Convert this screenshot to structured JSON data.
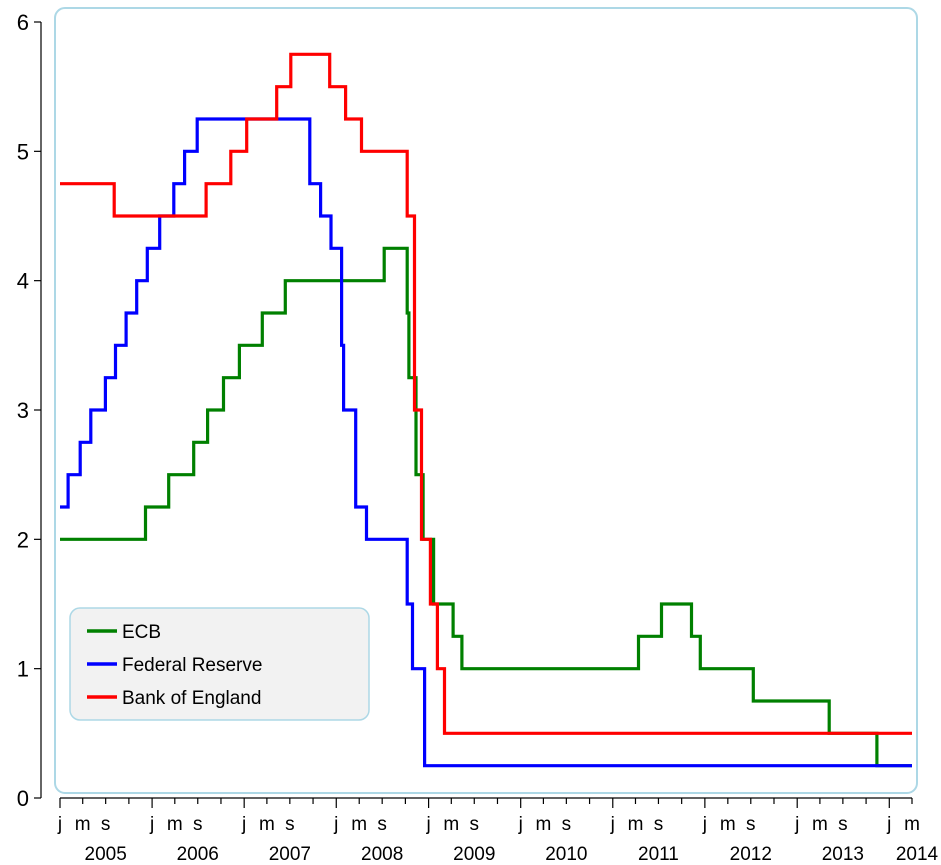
{
  "chart_data": {
    "type": "line",
    "step": true,
    "title": "",
    "xlabel": "",
    "ylabel": "",
    "ylim": [
      0,
      6
    ],
    "xlim": [
      "2005-01-01",
      "2014-04-01"
    ],
    "y_ticks": [
      "0",
      "1",
      "2",
      "3",
      "4",
      "5",
      "6"
    ],
    "x_year_labels": [
      "2005",
      "2006",
      "2007",
      "2008",
      "2009",
      "2010",
      "2011",
      "2012",
      "2013",
      "2014"
    ],
    "x_month_labels": [
      "j",
      "m",
      "s"
    ],
    "grid": false,
    "legend_position": "bottom-left",
    "colors": {
      "frame": "#add8e6",
      "legend_bg": "#f2f2f2"
    },
    "series": [
      {
        "name": "ECB",
        "color": "#008000",
        "points": [
          [
            "2005-01-01",
            2.0
          ],
          [
            "2005-12-06",
            2.25
          ],
          [
            "2006-03-08",
            2.5
          ],
          [
            "2006-06-15",
            2.75
          ],
          [
            "2006-08-09",
            3.0
          ],
          [
            "2006-10-11",
            3.25
          ],
          [
            "2006-12-13",
            3.5
          ],
          [
            "2007-03-14",
            3.75
          ],
          [
            "2007-06-13",
            4.0
          ],
          [
            "2008-07-09",
            4.25
          ],
          [
            "2008-10-08",
            3.75
          ],
          [
            "2008-10-15",
            3.25
          ],
          [
            "2008-11-12",
            2.5
          ],
          [
            "2008-12-10",
            2.0
          ],
          [
            "2009-01-21",
            1.5
          ],
          [
            "2009-04-08",
            1.25
          ],
          [
            "2009-05-13",
            1.0
          ],
          [
            "2011-04-13",
            1.25
          ],
          [
            "2011-07-13",
            1.5
          ],
          [
            "2011-11-09",
            1.25
          ],
          [
            "2011-12-14",
            1.0
          ],
          [
            "2012-07-11",
            0.75
          ],
          [
            "2013-05-08",
            0.5
          ],
          [
            "2013-11-13",
            0.25
          ],
          [
            "2014-04-01",
            0.25
          ]
        ]
      },
      {
        "name": "Federal Reserve",
        "color": "#0000ff",
        "points": [
          [
            "2005-01-01",
            2.25
          ],
          [
            "2005-02-02",
            2.5
          ],
          [
            "2005-03-22",
            2.75
          ],
          [
            "2005-05-03",
            3.0
          ],
          [
            "2005-06-30",
            3.25
          ],
          [
            "2005-08-09",
            3.5
          ],
          [
            "2005-09-20",
            3.75
          ],
          [
            "2005-11-01",
            4.0
          ],
          [
            "2005-12-13",
            4.25
          ],
          [
            "2006-01-31",
            4.5
          ],
          [
            "2006-03-28",
            4.75
          ],
          [
            "2006-05-10",
            5.0
          ],
          [
            "2006-06-29",
            5.25
          ],
          [
            "2007-09-18",
            4.75
          ],
          [
            "2007-10-31",
            4.5
          ],
          [
            "2007-12-11",
            4.25
          ],
          [
            "2008-01-22",
            3.5
          ],
          [
            "2008-01-30",
            3.0
          ],
          [
            "2008-03-18",
            2.25
          ],
          [
            "2008-04-30",
            2.0
          ],
          [
            "2008-10-08",
            1.5
          ],
          [
            "2008-10-29",
            1.0
          ],
          [
            "2008-12-16",
            0.25
          ],
          [
            "2014-04-01",
            0.25
          ]
        ]
      },
      {
        "name": "Bank of England",
        "color": "#ff0000",
        "points": [
          [
            "2005-01-01",
            4.75
          ],
          [
            "2005-08-04",
            4.5
          ],
          [
            "2006-08-03",
            4.75
          ],
          [
            "2006-11-09",
            5.0
          ],
          [
            "2007-01-11",
            5.25
          ],
          [
            "2007-05-10",
            5.5
          ],
          [
            "2007-07-05",
            5.75
          ],
          [
            "2007-12-06",
            5.5
          ],
          [
            "2008-02-07",
            5.25
          ],
          [
            "2008-04-10",
            5.0
          ],
          [
            "2008-10-08",
            4.5
          ],
          [
            "2008-11-06",
            3.0
          ],
          [
            "2008-12-04",
            2.0
          ],
          [
            "2009-01-08",
            1.5
          ],
          [
            "2009-02-05",
            1.0
          ],
          [
            "2009-03-05",
            0.5
          ],
          [
            "2014-04-01",
            0.5
          ]
        ]
      }
    ]
  }
}
